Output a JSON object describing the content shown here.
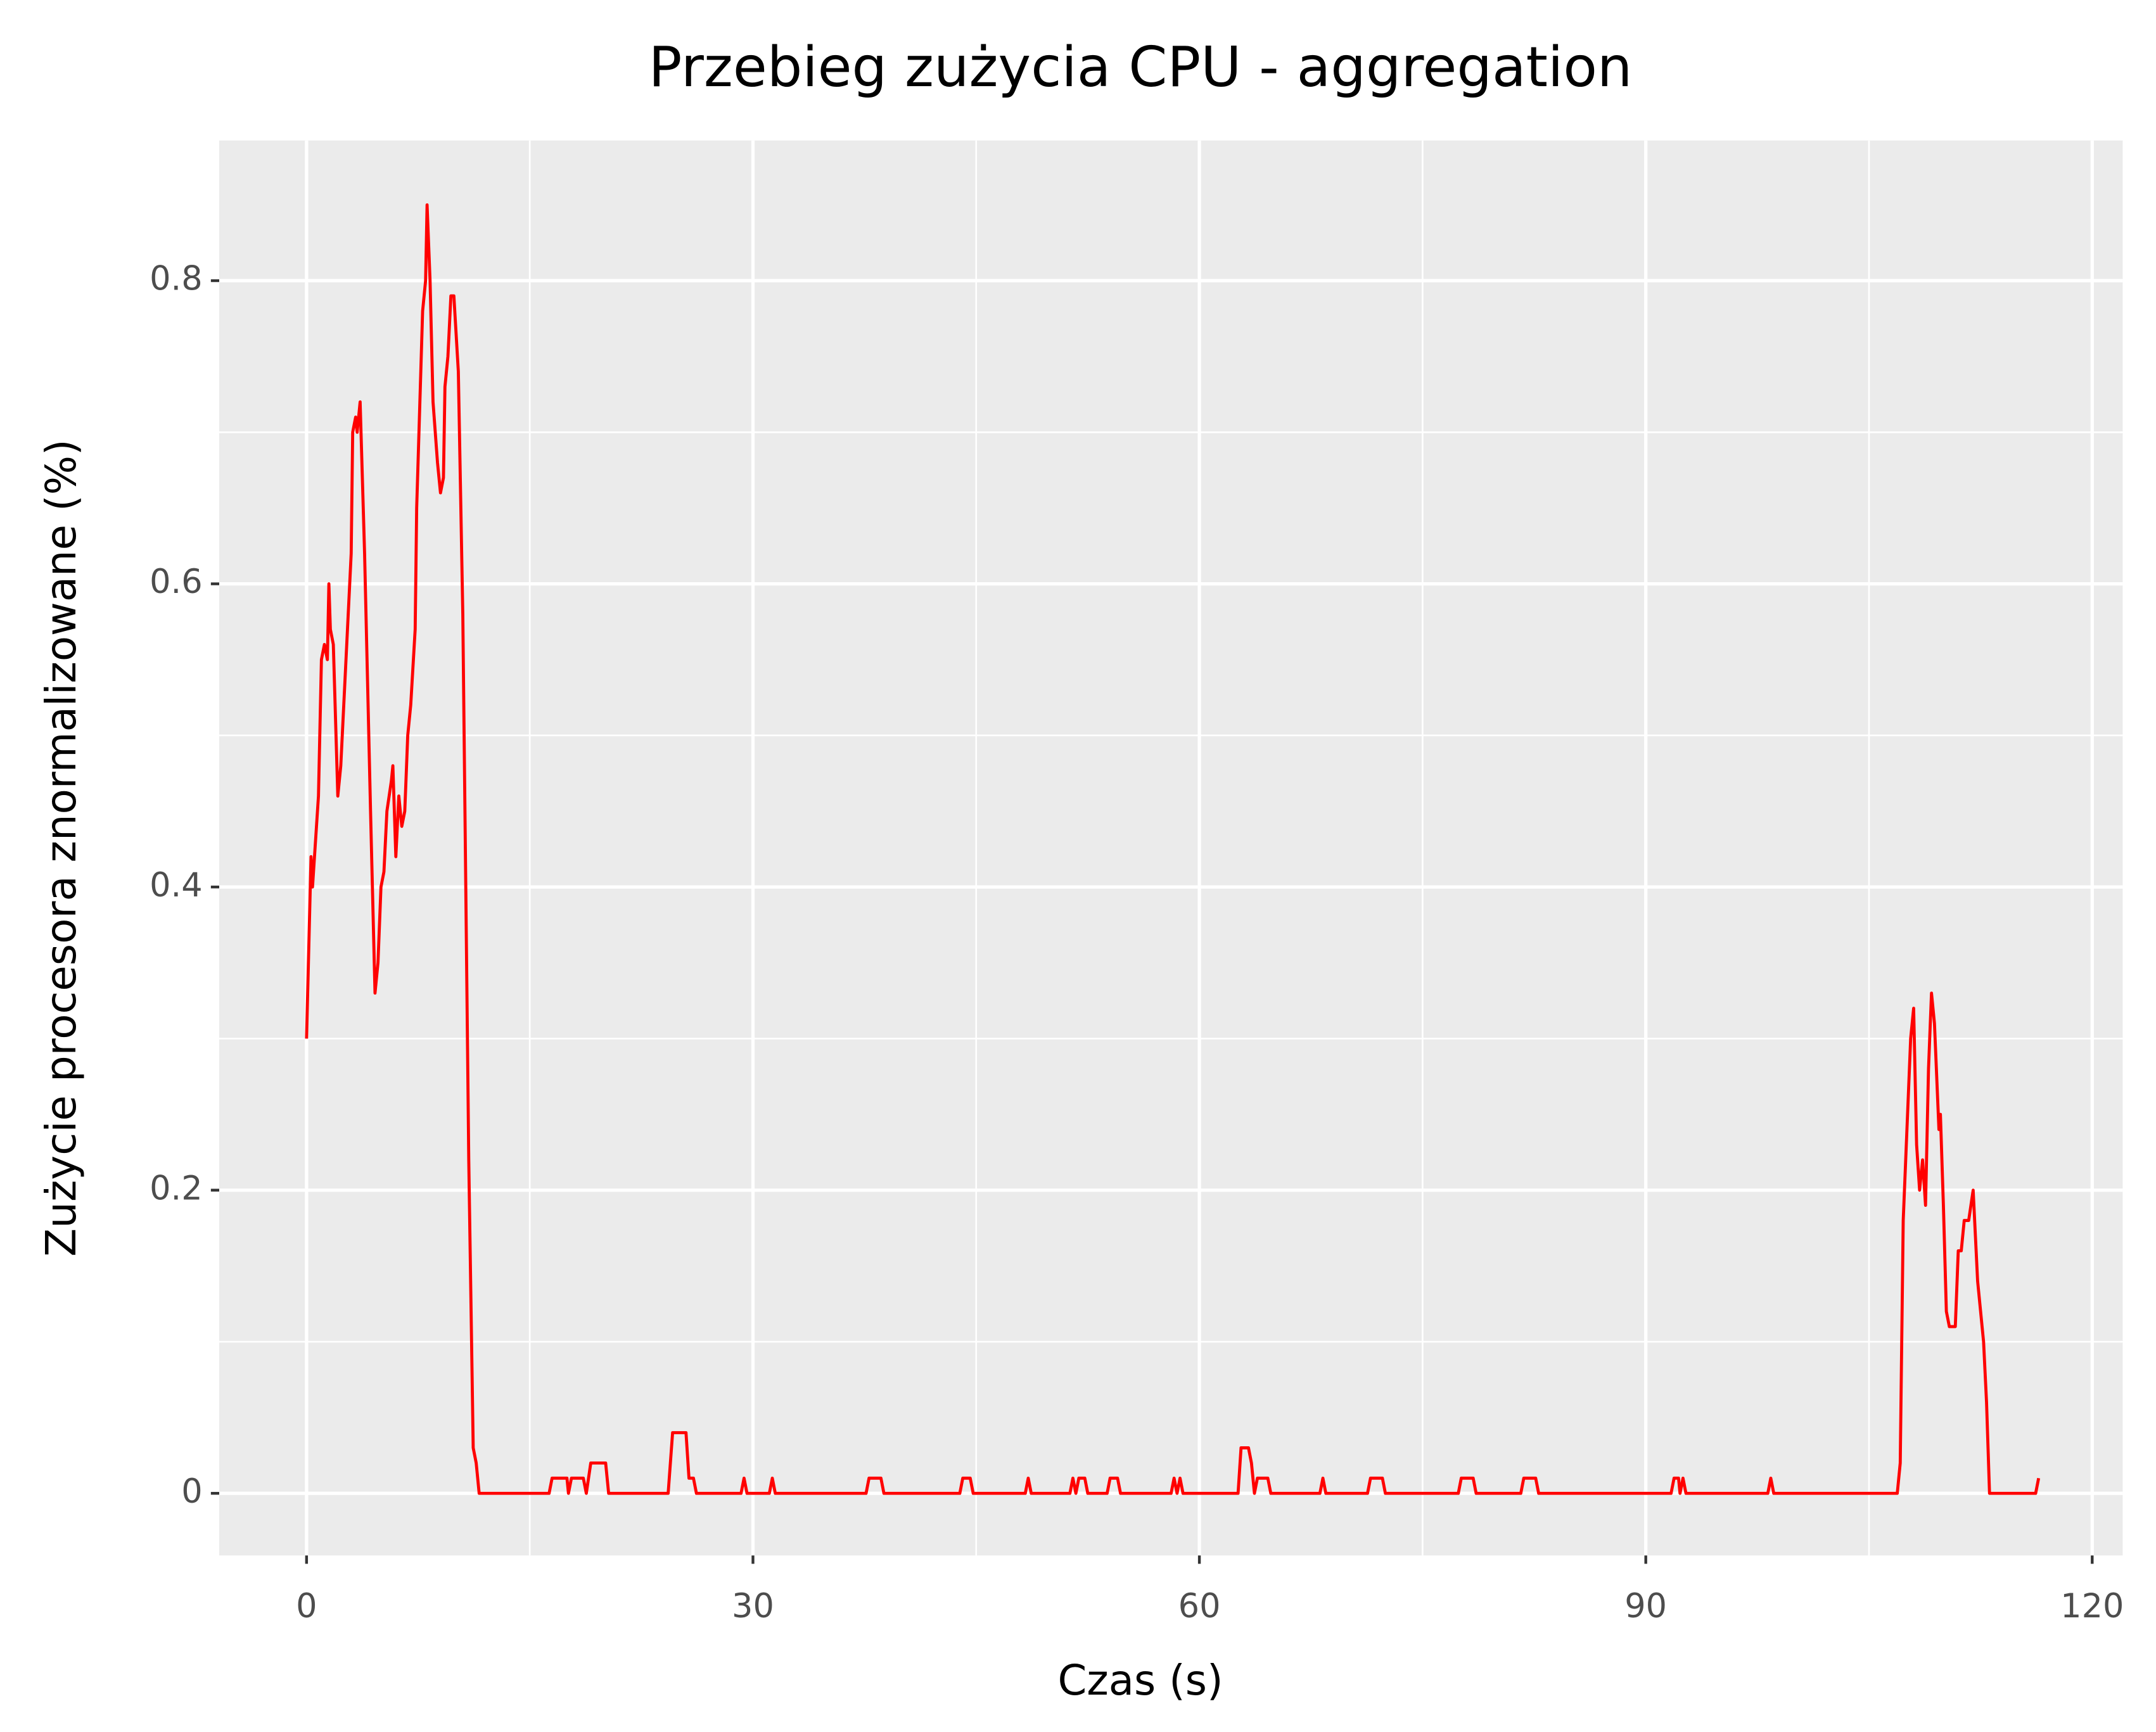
{
  "chart_data": {
    "type": "line",
    "title": "Przebieg zużycia CPU - aggregation",
    "xlabel": "Czas (s)",
    "ylabel": "Zużycie procesora znormalizowane (%)",
    "color": "#ff0000",
    "grid": true,
    "xlim": [
      -5.87,
      122.05
    ],
    "ylim": [
      -0.041,
      0.8925
    ],
    "xticks": [
      0,
      30,
      60,
      90,
      120
    ],
    "yticks": [
      0,
      0.2,
      0.4,
      0.6,
      0.8
    ],
    "x": [
      0,
      0.3,
      0.4,
      0.8,
      1.0,
      1.2,
      1.4,
      1.5,
      1.6,
      1.8,
      2.1,
      2.3,
      2.7,
      3.0,
      3.1,
      3.3,
      3.4,
      3.6,
      3.9,
      4.3,
      4.6,
      4.8,
      5.0,
      5.2,
      5.4,
      5.7,
      5.8,
      6.0,
      6.2,
      6.4,
      6.6,
      6.8,
      7.0,
      7.3,
      7.4,
      7.8,
      8.0,
      8.1,
      8.3,
      8.5,
      8.8,
      9.0,
      9.2,
      9.3,
      9.5,
      9.7,
      9.9,
      10.2,
      10.5,
      10.9,
      11.2,
      11.4,
      11.6,
      16.3,
      16.5,
      17.5,
      17.6,
      17.8,
      18.6,
      18.8,
      19.1,
      20.1,
      20.3,
      24.3,
      24.6,
      25.5,
      25.7,
      26.0,
      26.2,
      29.2,
      29.4,
      29.6,
      31.1,
      31.3,
      31.5,
      37.6,
      37.8,
      38.6,
      38.8,
      43.9,
      44.1,
      44.6,
      44.8,
      48.3,
      48.5,
      48.7,
      51.3,
      51.5,
      51.7,
      51.9,
      52.3,
      52.5,
      53.8,
      54.0,
      54.5,
      54.7,
      58.1,
      58.3,
      58.5,
      58.7,
      58.9,
      62.6,
      62.8,
      63.3,
      63.5,
      63.7,
      63.9,
      64.6,
      64.8,
      68.1,
      68.3,
      68.5,
      71.3,
      71.5,
      72.3,
      72.5,
      77.4,
      77.6,
      78.4,
      78.6,
      81.6,
      81.8,
      82.6,
      82.8,
      91.7,
      91.9,
      92.2,
      92.3,
      92.5,
      92.7,
      98.2,
      98.4,
      98.6,
      106.9,
      107.1,
      107.3,
      107.8,
      108.0,
      108.2,
      108.4,
      108.6,
      108.8,
      109.0,
      109.2,
      109.4,
      109.7,
      109.8,
      110.0,
      110.2,
      110.4,
      110.8,
      111.0,
      111.2,
      111.4,
      111.7,
      112.0,
      112.3,
      112.7,
      112.9,
      113.1,
      116.2,
      116.4
    ],
    "values": [
      0.3,
      0.42,
      0.4,
      0.46,
      0.55,
      0.56,
      0.55,
      0.6,
      0.57,
      0.56,
      0.46,
      0.48,
      0.56,
      0.62,
      0.7,
      0.71,
      0.7,
      0.72,
      0.62,
      0.45,
      0.33,
      0.35,
      0.4,
      0.41,
      0.45,
      0.47,
      0.48,
      0.42,
      0.46,
      0.44,
      0.45,
      0.5,
      0.52,
      0.57,
      0.65,
      0.78,
      0.8,
      0.85,
      0.8,
      0.72,
      0.68,
      0.66,
      0.67,
      0.73,
      0.75,
      0.79,
      0.79,
      0.74,
      0.58,
      0.22,
      0.03,
      0.02,
      0,
      0,
      0.01,
      0.01,
      0,
      0.01,
      0.01,
      0,
      0.02,
      0.02,
      0,
      0,
      0.04,
      0.04,
      0.01,
      0.01,
      0,
      0,
      0.01,
      0,
      0,
      0.01,
      0,
      0,
      0.01,
      0.01,
      0,
      0,
      0.01,
      0.01,
      0,
      0,
      0.01,
      0,
      0,
      0.01,
      0,
      0.01,
      0.01,
      0,
      0,
      0.01,
      0.01,
      0,
      0,
      0.01,
      0,
      0.01,
      0,
      0,
      0.03,
      0.03,
      0.02,
      0,
      0.01,
      0.01,
      0,
      0,
      0.01,
      0,
      0,
      0.01,
      0.01,
      0,
      0,
      0.01,
      0.01,
      0,
      0,
      0.01,
      0.01,
      0,
      0,
      0.01,
      0.01,
      0,
      0.01,
      0,
      0,
      0.01,
      0,
      0,
      0.02,
      0.18,
      0.3,
      0.32,
      0.23,
      0.2,
      0.22,
      0.19,
      0.28,
      0.33,
      0.31,
      0.24,
      0.25,
      0.19,
      0.12,
      0.11,
      0.11,
      0.16,
      0.16,
      0.18,
      0.18,
      0.2,
      0.14,
      0.1,
      0.06,
      0,
      0,
      0.01
    ]
  }
}
